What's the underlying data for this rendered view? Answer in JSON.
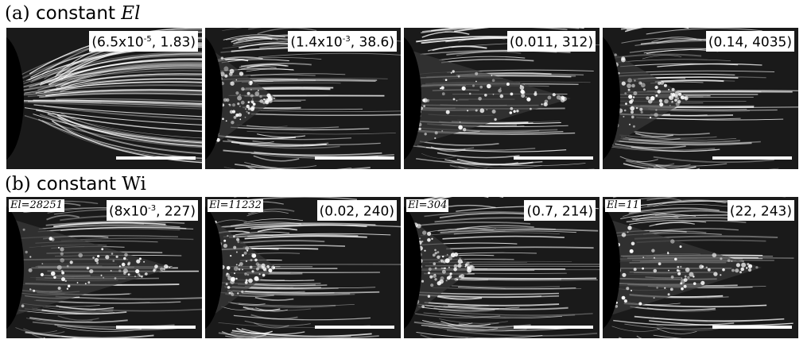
{
  "rows": [
    {
      "label_paren": "(a)",
      "label_text": " constant ",
      "label_symbol": "El",
      "panels": [
        {
          "param_prefix": "(6.5x10",
          "param_exp": "-5",
          "param_suffix": ", 1.83)",
          "el_label": "",
          "regime": "converging"
        },
        {
          "param_prefix": "(1.4x10",
          "param_exp": "-3",
          "param_suffix": ", 38.6)",
          "el_label": "",
          "regime": "lip"
        },
        {
          "param_prefix": "(0.011, 312)",
          "param_exp": "",
          "param_suffix": "",
          "el_label": "",
          "regime": "wedge"
        },
        {
          "param_prefix": "(0.14, 4035)",
          "param_exp": "",
          "param_suffix": "",
          "el_label": "",
          "regime": "small-wedge"
        }
      ]
    },
    {
      "label_paren": "(b)",
      "label_text": " constant ",
      "label_symbol": "Wi",
      "panels": [
        {
          "param_prefix": "(8x10",
          "param_exp": "-3",
          "param_suffix": ", 227)",
          "el_label": "El=28251",
          "regime": "wedge"
        },
        {
          "param_prefix": "(0.02, 240)",
          "param_exp": "",
          "param_suffix": "",
          "el_label": "El=11232",
          "regime": "lip"
        },
        {
          "param_prefix": "(0.7, 214)",
          "param_exp": "",
          "param_suffix": "",
          "el_label": "El=304",
          "regime": "lip"
        },
        {
          "param_prefix": "(22, 243)",
          "param_exp": "",
          "param_suffix": "",
          "el_label": "El=11",
          "regime": "turbulent"
        }
      ]
    }
  ]
}
